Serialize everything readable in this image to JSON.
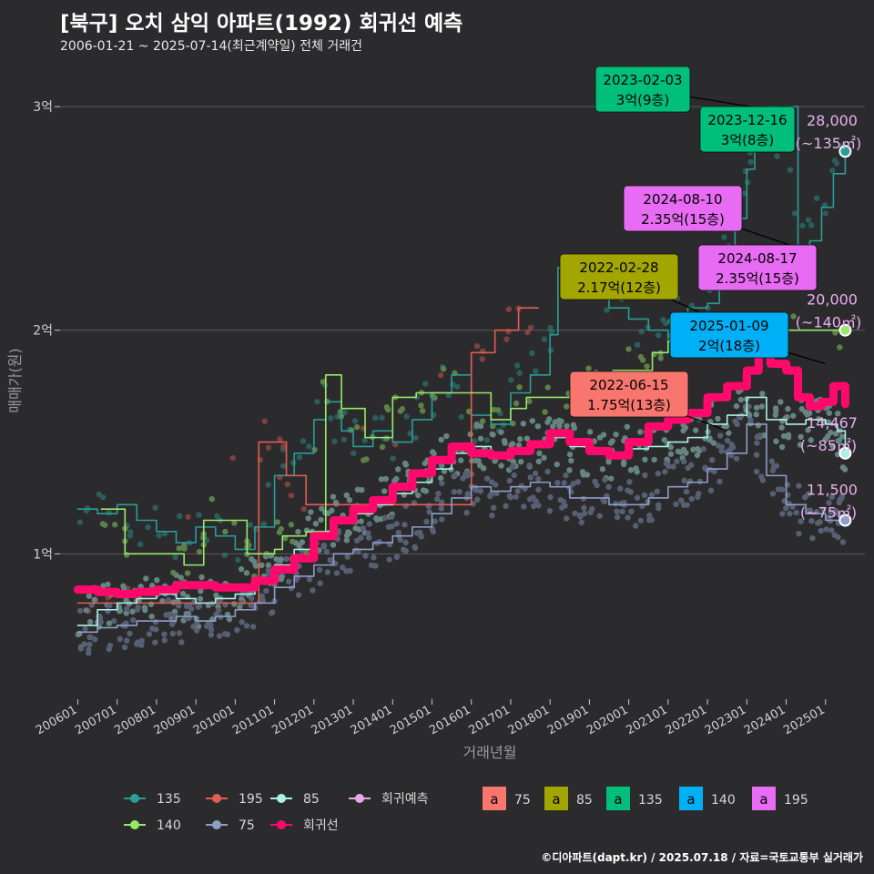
{
  "header": {
    "title": "[북구] 오치 삼익 아파트(1992) 회귀선 예측",
    "subtitle": "2006-01-21 ~ 2025-07-14(최근계약일) 전체 거래건"
  },
  "footer": {
    "credit": "©디아파트(dapt.kr) / 2025.07.18 / 자료=국토교통부 실거래가"
  },
  "colors": {
    "background": "#2b2b2d",
    "grid": "#5a5a5a",
    "s135": "#2a9d98",
    "s195": "#e35d52",
    "s85": "#aef0e6",
    "s140": "#9ae86a",
    "s75": "#8e9ec8",
    "regression": "#ff0a6c",
    "prediction": "#e8a8ea",
    "box75": "#f8766d",
    "box85": "#a3a500",
    "box135": "#00bf7d",
    "box140": "#00b0f6",
    "box195": "#e76bf3"
  },
  "chart_data": {
    "type": "line",
    "xlabel": "거래년월",
    "ylabel": "매매가(원)",
    "x_ticks": [
      "200601",
      "200701",
      "200801",
      "200901",
      "201001",
      "201101",
      "201201",
      "201301",
      "201401",
      "201501",
      "201601",
      "201701",
      "201801",
      "201901",
      "202001",
      "202101",
      "202201",
      "202301",
      "202401",
      "202501"
    ],
    "y_ticks": [
      {
        "value": 1,
        "label": "1억"
      },
      {
        "value": 2,
        "label": "2억"
      },
      {
        "value": 3,
        "label": "3억"
      }
    ],
    "ylim": [
      0.35,
      3.2
    ],
    "xlim": [
      2005.55,
      2026.0
    ],
    "series": [
      {
        "name": "135",
        "color_key": "s135",
        "x": [
          2006.0,
          2006.5,
          2007.0,
          2007.5,
          2008.0,
          2008.5,
          2009.0,
          2009.5,
          2010.0,
          2010.5,
          2011.0,
          2011.5,
          2012.0,
          2012.3,
          2012.7,
          2013.0,
          2013.5,
          2014.0,
          2014.5,
          2015.0,
          2015.5,
          2016.0,
          2016.5,
          2017.0,
          2017.5,
          2018.0,
          2018.2,
          2018.6,
          2019.0,
          2019.5,
          2020.0,
          2020.5,
          2021.0,
          2021.5,
          2022.0,
          2022.3,
          2022.7,
          2023.0,
          2023.2,
          2023.5,
          2023.8,
          2024.0,
          2024.3,
          2024.6,
          2024.9,
          2025.2,
          2025.5
        ],
        "values": [
          1.2,
          1.18,
          1.22,
          1.15,
          1.1,
          1.05,
          1.12,
          1.08,
          1.02,
          1.12,
          1.35,
          1.45,
          1.6,
          1.68,
          1.55,
          1.48,
          1.55,
          1.5,
          1.6,
          1.72,
          1.8,
          1.62,
          1.58,
          1.72,
          1.8,
          1.98,
          2.28,
          2.2,
          2.18,
          2.1,
          2.05,
          2.0,
          1.98,
          2.1,
          2.12,
          2.25,
          2.5,
          2.72,
          2.9,
          3.0,
          2.85,
          3.0,
          2.35,
          2.4,
          2.55,
          2.7,
          2.8
        ]
      },
      {
        "name": "195",
        "color_key": "s195",
        "x": [
          2006.0,
          2006.8,
          2010.6,
          2011.0,
          2011.3,
          2011.8,
          2016.0,
          2016.6,
          2017.2,
          2017.7
        ],
        "values": [
          0.78,
          0.78,
          1.5,
          1.5,
          1.35,
          1.22,
          1.9,
          2.0,
          2.1,
          2.1
        ]
      },
      {
        "name": "85",
        "color_key": "s85",
        "x": [
          2006.0,
          2006.5,
          2007.0,
          2007.5,
          2008.0,
          2008.5,
          2009.0,
          2009.5,
          2010.0,
          2010.5,
          2011.0,
          2011.5,
          2012.0,
          2012.5,
          2013.0,
          2013.5,
          2014.0,
          2014.5,
          2015.0,
          2015.5,
          2016.0,
          2016.5,
          2017.0,
          2017.5,
          2018.0,
          2018.5,
          2019.0,
          2019.5,
          2020.0,
          2020.5,
          2021.0,
          2021.5,
          2022.0,
          2022.5,
          2023.0,
          2023.5,
          2024.0,
          2024.5,
          2025.0,
          2025.3,
          2025.5
        ],
        "values": [
          0.68,
          0.75,
          0.78,
          0.8,
          0.82,
          0.8,
          0.78,
          0.8,
          0.82,
          0.88,
          0.95,
          1.02,
          1.1,
          1.15,
          1.18,
          1.22,
          1.27,
          1.32,
          1.38,
          1.45,
          1.48,
          1.45,
          1.46,
          1.5,
          1.52,
          1.48,
          1.45,
          1.44,
          1.47,
          1.48,
          1.5,
          1.52,
          1.58,
          1.62,
          1.7,
          1.6,
          1.58,
          1.6,
          1.58,
          1.55,
          1.45
        ]
      },
      {
        "name": "140",
        "color_key": "s140",
        "x": [
          2006.6,
          2007.2,
          2007.2,
          2008.7,
          2008.7,
          2009.2,
          2009.2,
          2010.3,
          2010.3,
          2011.0,
          2011.2,
          2011.8,
          2012.3,
          2012.7,
          2013.3,
          2013.8,
          2014.0,
          2014.6,
          2014.8,
          2015.4,
          2016.5,
          2017.0,
          2017.4,
          2018.0,
          2019.0,
          2019.6,
          2020.0,
          2020.6,
          2021.0,
          2021.4,
          2025.4
        ],
        "values": [
          1.2,
          1.2,
          1.0,
          0.98,
          0.95,
          1.15,
          1.15,
          1.15,
          1.0,
          1.02,
          1.08,
          1.1,
          1.8,
          1.65,
          1.52,
          1.52,
          1.7,
          1.72,
          1.72,
          1.72,
          1.6,
          1.65,
          1.7,
          1.7,
          1.8,
          1.82,
          1.82,
          1.9,
          1.95,
          2.0,
          2.0
        ]
      },
      {
        "name": "75",
        "color_key": "s75",
        "x": [
          2006.0,
          2006.5,
          2007.0,
          2007.5,
          2008.0,
          2008.5,
          2009.0,
          2009.5,
          2010.0,
          2010.5,
          2011.0,
          2011.5,
          2012.0,
          2012.5,
          2013.0,
          2013.5,
          2014.0,
          2014.5,
          2015.0,
          2015.5,
          2016.0,
          2016.5,
          2017.0,
          2017.5,
          2018.0,
          2018.5,
          2019.0,
          2019.5,
          2020.0,
          2020.5,
          2021.0,
          2021.5,
          2022.0,
          2022.5,
          2023.0,
          2023.5,
          2024.0,
          2024.5,
          2025.0,
          2025.3,
          2025.5
        ],
        "values": [
          0.65,
          0.67,
          0.68,
          0.7,
          0.7,
          0.72,
          0.7,
          0.72,
          0.75,
          0.78,
          0.85,
          0.9,
          0.95,
          1.0,
          1.02,
          1.05,
          1.08,
          1.12,
          1.18,
          1.25,
          1.3,
          1.28,
          1.3,
          1.32,
          1.3,
          1.25,
          1.25,
          1.22,
          1.22,
          1.25,
          1.3,
          1.32,
          1.38,
          1.45,
          1.58,
          1.35,
          1.22,
          1.18,
          1.15,
          1.15,
          1.15
        ]
      },
      {
        "name": "회귀선",
        "color_key": "regression",
        "x": [
          2006.0,
          2006.5,
          2007.0,
          2007.5,
          2008.0,
          2008.5,
          2009.0,
          2009.5,
          2010.0,
          2010.5,
          2011.0,
          2011.5,
          2012.0,
          2012.5,
          2013.0,
          2013.5,
          2014.0,
          2014.5,
          2015.0,
          2015.5,
          2016.0,
          2016.5,
          2017.0,
          2017.5,
          2018.0,
          2018.5,
          2019.0,
          2019.5,
          2020.0,
          2020.5,
          2021.0,
          2021.5,
          2022.0,
          2022.5,
          2023.0,
          2023.3,
          2023.6,
          2024.0,
          2024.3,
          2024.6,
          2024.9,
          2025.2,
          2025.5
        ],
        "values": [
          0.84,
          0.83,
          0.82,
          0.83,
          0.84,
          0.86,
          0.86,
          0.85,
          0.85,
          0.88,
          0.93,
          0.98,
          1.08,
          1.15,
          1.2,
          1.24,
          1.3,
          1.36,
          1.42,
          1.48,
          1.45,
          1.44,
          1.46,
          1.49,
          1.54,
          1.5,
          1.46,
          1.44,
          1.5,
          1.57,
          1.6,
          1.63,
          1.7,
          1.75,
          1.82,
          1.9,
          1.85,
          1.82,
          1.7,
          1.66,
          1.68,
          1.75,
          1.67
        ]
      },
      {
        "name": "회귀예측",
        "color_key": "prediction",
        "x": [],
        "values": []
      }
    ],
    "scatter_note": "개별 거래 점",
    "end_labels": [
      {
        "price": "28,000",
        "area": "(~135㎡)",
        "x": 2025.5,
        "y": 2.8,
        "color_key": "s135"
      },
      {
        "price": "20,000",
        "area": "(~140㎡)",
        "x": 2025.5,
        "y": 2.0,
        "color_key": "s140"
      },
      {
        "price": "14,467",
        "area": "(~85㎡)",
        "x": 2025.5,
        "y": 1.45,
        "color_key": "s85"
      },
      {
        "price": "11,500",
        "area": "(~75㎡)",
        "x": 2025.5,
        "y": 1.15,
        "color_key": "s75"
      }
    ],
    "annotations": [
      {
        "date": "2023-02-03",
        "value": "3억(9층)",
        "box_key": "box135",
        "tx": 2023.1,
        "ty": 3.0
      },
      {
        "date": "2023-12-16",
        "value": "3억(8층)",
        "box_key": "box135",
        "tx": 2024.0,
        "ty": 3.0
      },
      {
        "date": "2024-08-10",
        "value": "2.35억(15층)",
        "box_key": "box195",
        "tx": 2024.6,
        "ty": 2.35
      },
      {
        "date": "2024-08-17",
        "value": "2.35억(15층)",
        "box_key": "box195",
        "tx": 2024.6,
        "ty": 2.35
      },
      {
        "date": "2022-02-28",
        "value": "2.17억(12층)",
        "box_key": "box85",
        "tx": 2022.2,
        "ty": 2.05
      },
      {
        "date": "2025-01-09",
        "value": "2억(18층)",
        "box_key": "box140",
        "tx": 2025.0,
        "ty": 1.85
      },
      {
        "date": "2022-06-15",
        "value": "1.75억(13층)",
        "box_key": "box75",
        "tx": 2022.5,
        "ty": 1.55
      }
    ],
    "legend": {
      "rows": [
        [
          {
            "label": "135",
            "color_key": "s135"
          },
          {
            "label": "195",
            "color_key": "s195"
          },
          {
            "label": "85",
            "color_key": "s85"
          },
          {
            "label": "회귀예측",
            "color_key": "prediction"
          }
        ],
        [
          {
            "label": "140",
            "color_key": "s140"
          },
          {
            "label": "75",
            "color_key": "s75"
          },
          {
            "label": "회귀선",
            "color_key": "regression"
          }
        ]
      ],
      "boxes": [
        {
          "glyph": "a",
          "label": "75",
          "color_key": "box75"
        },
        {
          "glyph": "a",
          "label": "85",
          "color_key": "box85"
        },
        {
          "glyph": "a",
          "label": "135",
          "color_key": "box135"
        },
        {
          "glyph": "a",
          "label": "140",
          "color_key": "box140"
        },
        {
          "glyph": "a",
          "label": "195",
          "color_key": "box195"
        }
      ]
    }
  }
}
